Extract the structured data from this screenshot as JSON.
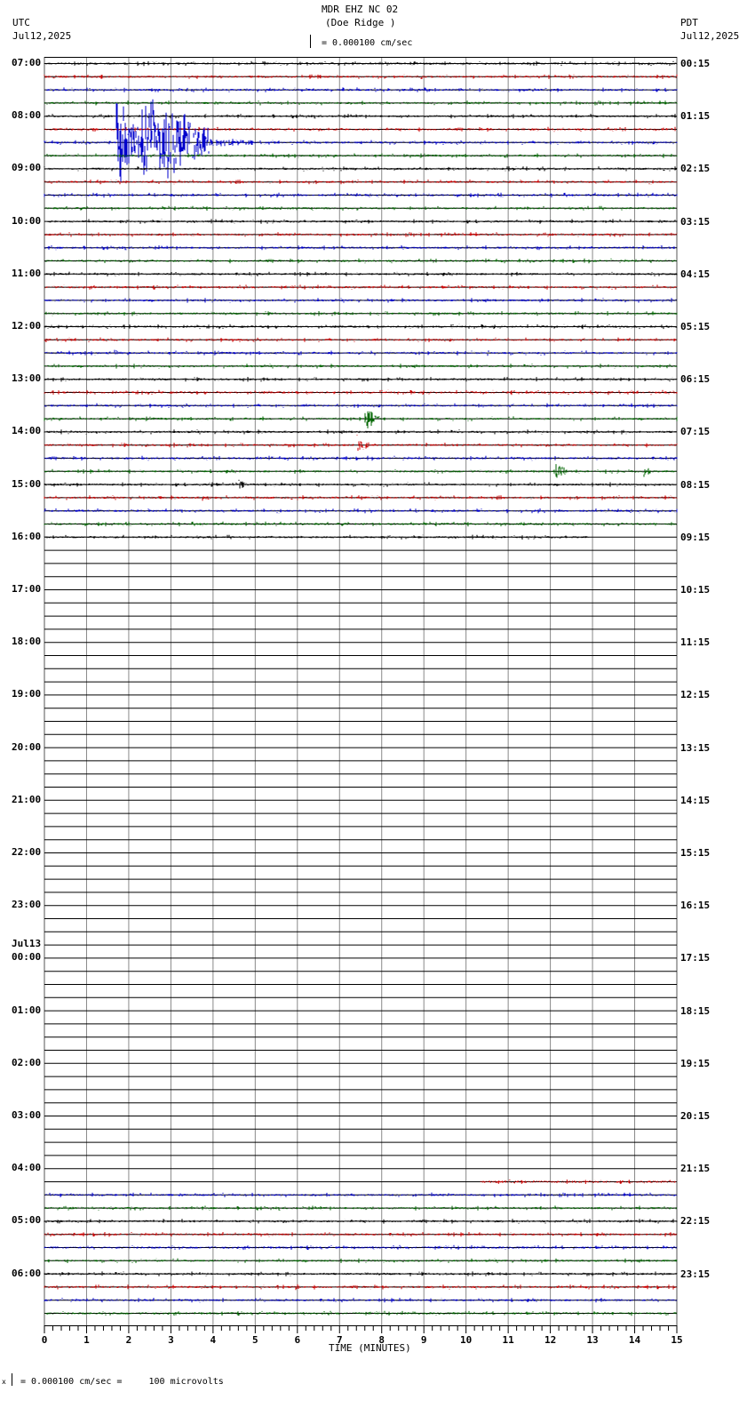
{
  "header": {
    "station": "MDR EHZ NC 02",
    "location": "(Doe Ridge )",
    "left_tz": "UTC",
    "left_date": "Jul12,2025",
    "right_tz": "PDT",
    "right_date": "Jul12,2025",
    "scale_text": "= 0.000100 cm/sec"
  },
  "footer": {
    "scale_text": "= 0.000100 cm/sec =     100 microvolts",
    "prefix": "x"
  },
  "chart_data": {
    "type": "line",
    "title": "MDR EHZ NC 02 (Doe Ridge )",
    "xlabel": "TIME (MINUTES)",
    "x_ticks": [
      "0",
      "1",
      "2",
      "3",
      "4",
      "5",
      "6",
      "7",
      "8",
      "9",
      "10",
      "11",
      "12",
      "13",
      "14",
      "15"
    ],
    "xlim": [
      0,
      15
    ],
    "rows_per_hour": 4,
    "row_count": 96,
    "trace_colors": [
      "#000000",
      "#cc0000",
      "#0000cc",
      "#006600"
    ],
    "left_labels": [
      {
        "row": 0,
        "text": "07:00"
      },
      {
        "row": 4,
        "text": "08:00"
      },
      {
        "row": 8,
        "text": "09:00"
      },
      {
        "row": 12,
        "text": "10:00"
      },
      {
        "row": 16,
        "text": "11:00"
      },
      {
        "row": 20,
        "text": "12:00"
      },
      {
        "row": 24,
        "text": "13:00"
      },
      {
        "row": 28,
        "text": "14:00"
      },
      {
        "row": 32,
        "text": "15:00"
      },
      {
        "row": 36,
        "text": "16:00"
      },
      {
        "row": 40,
        "text": "17:00"
      },
      {
        "row": 44,
        "text": "18:00"
      },
      {
        "row": 48,
        "text": "19:00"
      },
      {
        "row": 52,
        "text": "20:00"
      },
      {
        "row": 56,
        "text": "21:00"
      },
      {
        "row": 60,
        "text": "22:00"
      },
      {
        "row": 64,
        "text": "23:00"
      },
      {
        "row": 68,
        "text": "00:00",
        "date": "Jul13"
      },
      {
        "row": 72,
        "text": "01:00"
      },
      {
        "row": 76,
        "text": "02:00"
      },
      {
        "row": 80,
        "text": "03:00"
      },
      {
        "row": 84,
        "text": "04:00"
      },
      {
        "row": 88,
        "text": "05:00"
      },
      {
        "row": 92,
        "text": "06:00"
      }
    ],
    "right_labels": [
      {
        "row": 0,
        "text": "00:15"
      },
      {
        "row": 4,
        "text": "01:15"
      },
      {
        "row": 8,
        "text": "02:15"
      },
      {
        "row": 12,
        "text": "03:15"
      },
      {
        "row": 16,
        "text": "04:15"
      },
      {
        "row": 20,
        "text": "05:15"
      },
      {
        "row": 24,
        "text": "06:15"
      },
      {
        "row": 28,
        "text": "07:15"
      },
      {
        "row": 32,
        "text": "08:15"
      },
      {
        "row": 36,
        "text": "09:15"
      },
      {
        "row": 40,
        "text": "10:15"
      },
      {
        "row": 44,
        "text": "11:15"
      },
      {
        "row": 48,
        "text": "12:15"
      },
      {
        "row": 52,
        "text": "13:15"
      },
      {
        "row": 56,
        "text": "14:15"
      },
      {
        "row": 60,
        "text": "15:15"
      },
      {
        "row": 64,
        "text": "16:15"
      },
      {
        "row": 68,
        "text": "17:15"
      },
      {
        "row": 72,
        "text": "18:15"
      },
      {
        "row": 76,
        "text": "19:15"
      },
      {
        "row": 80,
        "text": "20:15"
      },
      {
        "row": 84,
        "text": "21:15"
      },
      {
        "row": 88,
        "text": "22:15"
      },
      {
        "row": 92,
        "text": "23:15"
      }
    ],
    "trace_segments": [
      {
        "rows": [
          0,
          35
        ],
        "start_min": 0,
        "end_min": 15
      },
      {
        "rows": [
          36,
          36
        ],
        "start_min": 0,
        "end_min": 12.9
      },
      {
        "rows": [
          85,
          85
        ],
        "start_min": 10.35,
        "end_min": 15
      },
      {
        "rows": [
          86,
          95
        ],
        "start_min": 0,
        "end_min": 15
      }
    ],
    "events": [
      {
        "row": 6,
        "minute": 1.7,
        "amp": 58,
        "dur": 0.6,
        "note": "large earthquake"
      },
      {
        "row": 6,
        "minute": 2.3,
        "amp": 62,
        "dur": 1.6
      },
      {
        "row": 6,
        "minute": 3.4,
        "amp": 8,
        "dur": 1.6
      },
      {
        "row": 22,
        "minute": 1.65,
        "amp": 5,
        "dur": 0.2
      },
      {
        "row": 22,
        "minute": 10.5,
        "amp": 15,
        "dur": 0.05
      },
      {
        "row": 27,
        "minute": 7.6,
        "amp": 15,
        "dur": 0.35
      },
      {
        "row": 29,
        "minute": 7.4,
        "amp": 14,
        "dur": 0.3
      },
      {
        "row": 29,
        "minute": 2.4,
        "amp": 5,
        "dur": 0.05
      },
      {
        "row": 31,
        "minute": 12.1,
        "amp": 13,
        "dur": 0.3
      },
      {
        "row": 31,
        "minute": 14.2,
        "amp": 9,
        "dur": 0.2
      },
      {
        "row": 32,
        "minute": 3.9,
        "amp": 7,
        "dur": 0.15
      },
      {
        "row": 32,
        "minute": 4.6,
        "amp": 9,
        "dur": 0.2
      },
      {
        "row": 33,
        "minute": 2.7,
        "amp": 4,
        "dur": 0.2
      },
      {
        "row": 33,
        "minute": 3.7,
        "amp": 4,
        "dur": 0.4
      },
      {
        "row": 93,
        "minute": 5.95,
        "amp": 7,
        "dur": 0.1
      }
    ]
  }
}
